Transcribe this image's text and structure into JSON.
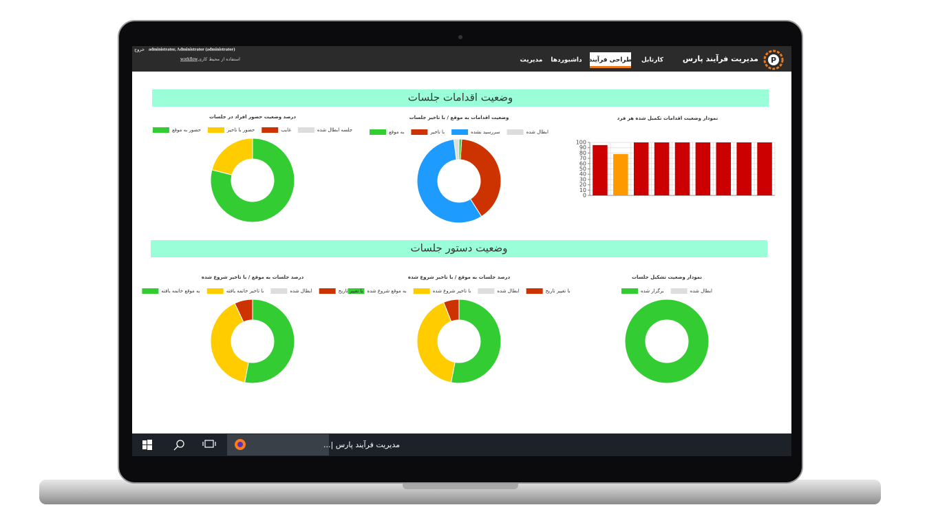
{
  "window": {
    "logout": "خروج",
    "user": "administrator, Administrator (administrator)",
    "workspace_prefix": "استفاده از محیط کاری",
    "workspace_link": "workflow"
  },
  "nav": {
    "brand": "مدیریت فرآیند پارس",
    "items": [
      "کارتابل",
      "طراحی فرآیند",
      "داشبوردها",
      "مدیریت"
    ]
  },
  "sections": [
    "وضعیت اقدامات جلسات",
    "وضعیت دستور جلسات"
  ],
  "chart_data": [
    {
      "type": "bar",
      "title": "نمودار وضعیت اقدامات تکمیل شده هر فرد",
      "categories": [
        null,
        null,
        null,
        null,
        null,
        null,
        null,
        null,
        null
      ],
      "values": [
        95,
        78,
        100,
        100,
        100,
        100,
        100,
        100,
        100
      ],
      "colors": [
        "#cc0000",
        "#ff9900",
        "#cc0000",
        "#cc0000",
        "#cc0000",
        "#cc0000",
        "#cc0000",
        "#cc0000",
        "#cc0000"
      ],
      "ylim": [
        0,
        100
      ],
      "yticks": [
        0,
        10,
        20,
        30,
        40,
        50,
        60,
        70,
        80,
        90,
        100
      ],
      "grid": true
    },
    {
      "type": "doughnut",
      "title": "وضعیت اقدامات به موقع / با تاخیر جلسات",
      "categories": [
        "ابطال شده",
        "سررسید نشده",
        "با تاخیر",
        "به موقع"
      ],
      "colors": [
        "#dddddd",
        "#1e9bff",
        "#cc3300",
        "#33cc33"
      ],
      "values": [
        2,
        57,
        40,
        1
      ]
    },
    {
      "type": "doughnut",
      "title": "درصد وضعیت حضور افراد در جلسات",
      "categories": [
        "جلسه ابطال شده",
        "غایب",
        "حضور با تاخیر",
        "حضور به موقع"
      ],
      "colors": [
        "#dddddd",
        "#cc3300",
        "#ffcc00",
        "#33cc33"
      ],
      "values": [
        0,
        0,
        21,
        79
      ]
    },
    {
      "type": "doughnut",
      "title": "نمودار وضعیت تشکیل جلسات",
      "categories": [
        "ابطال شده",
        "برگزار شده"
      ],
      "colors": [
        "#dddddd",
        "#33cc33"
      ],
      "values": [
        0,
        100
      ]
    },
    {
      "type": "doughnut",
      "title": "درصد جلسات به موقع / با تاخیر شروع شده",
      "categories": [
        "با تغییر تاریخ",
        "ابطال شده",
        "با تاخیر شروع شده",
        "به موقع شروع شده"
      ],
      "colors": [
        "#cc3300",
        "#dddddd",
        "#ffcc00",
        "#33cc33"
      ],
      "values": [
        6,
        0,
        41,
        53
      ]
    },
    {
      "type": "doughnut",
      "title": "درصد جلسات به موقع / با تاخیر شروع شده",
      "categories": [
        "با تغییر تاریخ",
        "ابطال شده",
        "با تاخیر خاتمه یافته",
        "به موقع خاتمه یافته"
      ],
      "colors": [
        "#cc3300",
        "#dddddd",
        "#ffcc00",
        "#33cc33"
      ],
      "values": [
        7,
        0,
        40,
        53
      ]
    }
  ],
  "taskbar": {
    "window_title": "مدیریت فرآیند پارس |..."
  }
}
